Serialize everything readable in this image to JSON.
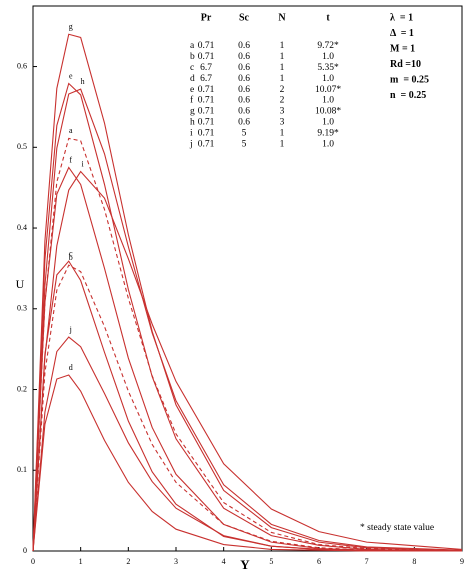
{
  "chart_data": {
    "type": "line",
    "x_label": "Y",
    "y_label": "U",
    "x": [
      0,
      0.25,
      0.5,
      0.75,
      1,
      1.5,
      2,
      2.5,
      3,
      4,
      5,
      6,
      7,
      9
    ],
    "series": [
      {
        "name": "a",
        "color": "#c8312f",
        "dashed": true,
        "values": [
          0,
          0.307,
          0.457,
          0.511,
          0.508,
          0.423,
          0.313,
          0.217,
          0.145,
          0.06,
          0.023,
          0.008,
          0.003,
          0
        ]
      },
      {
        "name": "b",
        "color": "#c8312f",
        "dashed": true,
        "values": [
          0,
          0.221,
          0.323,
          0.354,
          0.346,
          0.278,
          0.198,
          0.132,
          0.085,
          0.033,
          0.012,
          0.004,
          0.001,
          0
        ]
      },
      {
        "name": "c",
        "color": "#c8312f",
        "dashed": false,
        "values": [
          0,
          0.244,
          0.342,
          0.359,
          0.335,
          0.246,
          0.161,
          0.098,
          0.058,
          0.018,
          0.006,
          0.002,
          0,
          0
        ]
      },
      {
        "name": "d",
        "color": "#c8312f",
        "dashed": false,
        "values": [
          0,
          0.157,
          0.213,
          0.218,
          0.198,
          0.137,
          0.085,
          0.049,
          0.027,
          0.008,
          0.002,
          0.001,
          0,
          0
        ]
      },
      {
        "name": "e",
        "color": "#c8312f",
        "dashed": false,
        "values": [
          0,
          0.361,
          0.527,
          0.579,
          0.565,
          0.454,
          0.324,
          0.216,
          0.139,
          0.053,
          0.019,
          0.007,
          0.002,
          0
        ]
      },
      {
        "name": "f",
        "color": "#c8312f",
        "dashed": false,
        "values": [
          0,
          0.308,
          0.442,
          0.475,
          0.454,
          0.35,
          0.239,
          0.153,
          0.095,
          0.033,
          0.011,
          0.003,
          0.001,
          0
        ]
      },
      {
        "name": "g",
        "color": "#c8312f",
        "dashed": false,
        "values": [
          0,
          0.384,
          0.573,
          0.64,
          0.636,
          0.53,
          0.392,
          0.272,
          0.181,
          0.075,
          0.029,
          0.011,
          0.004,
          0
        ]
      },
      {
        "name": "h",
        "color": "#c8312f",
        "dashed": false,
        "values": [
          0,
          0.329,
          0.499,
          0.566,
          0.572,
          0.492,
          0.377,
          0.27,
          0.186,
          0.082,
          0.033,
          0.013,
          0.005,
          0.001
        ]
      },
      {
        "name": "i",
        "color": "#c8312f",
        "dashed": false,
        "values": [
          0,
          0.24,
          0.378,
          0.447,
          0.47,
          0.437,
          0.362,
          0.281,
          0.21,
          0.108,
          0.052,
          0.024,
          0.011,
          0.002
        ]
      },
      {
        "name": "j",
        "color": "#c8312f",
        "dashed": false,
        "values": [
          0,
          0.172,
          0.247,
          0.265,
          0.253,
          0.195,
          0.134,
          0.086,
          0.053,
          0.019,
          0.006,
          0.002,
          0.001,
          0
        ]
      }
    ],
    "xlim": [
      0,
      9
    ],
    "xticks": [
      0,
      1,
      2,
      3,
      4,
      5,
      6,
      7,
      8,
      9
    ],
    "ylim": [
      0,
      0.675
    ],
    "yticks": [
      0,
      0.1,
      0.2,
      0.3,
      0.4,
      0.5,
      0.6
    ],
    "table": {
      "header": [
        "Pr",
        "Sc",
        "N",
        "t"
      ],
      "rows": [
        [
          "0.71",
          "0.6",
          "1",
          "9.72*"
        ],
        [
          "0.71",
          "0.6",
          "1",
          "1.0"
        ],
        [
          "6.7",
          "0.6",
          "1",
          "5.35*"
        ],
        [
          "6.7",
          "0.6",
          "1",
          "1.0"
        ],
        [
          "0.71",
          "0.6",
          "2",
          "10.07*"
        ],
        [
          "0.71",
          "0.6",
          "2",
          "1.0"
        ],
        [
          "0.71",
          "0.6",
          "3",
          "10.08*"
        ],
        [
          "0.71",
          "0.6",
          "3",
          "1.0"
        ],
        [
          "0.71",
          "5",
          "1",
          "9.19*"
        ],
        [
          "0.71",
          "5",
          "1",
          "1.0"
        ]
      ]
    },
    "parameters": [
      "λ  = 1",
      "Δ  = 1",
      "M = 1",
      "Rd =10",
      "m  = 0.25",
      "n  = 0.25"
    ],
    "note": "* steady state value"
  }
}
